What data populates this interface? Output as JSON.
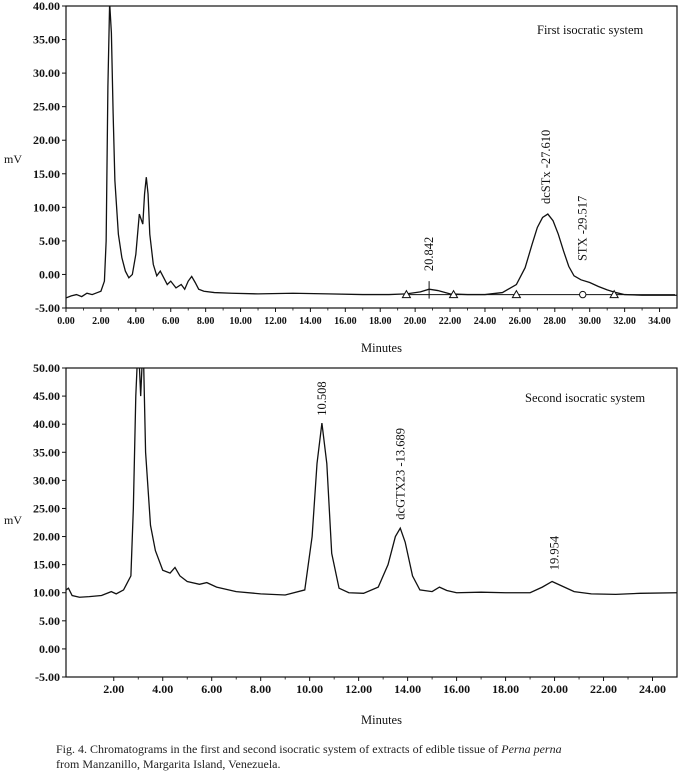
{
  "chart_data": [
    {
      "type": "line",
      "annotation_label": "First isocratic system",
      "ylabel": "mV",
      "xlabel": "Minutes",
      "xlim": [
        0,
        35
      ],
      "ylim": [
        -5,
        40
      ],
      "x_ticks": [
        "0.00",
        "2.00",
        "4.00",
        "6.00",
        "8.00",
        "10.00",
        "12.00",
        "14.00",
        "16.00",
        "18.00",
        "20.00",
        "22.00",
        "24.00",
        "26.00",
        "28.00",
        "30.00",
        "32.00",
        "34.00"
      ],
      "y_ticks": [
        "-5.00",
        "0.00",
        "5.00",
        "10.00",
        "15.00",
        "20.00",
        "25.00",
        "30.00",
        "35.00",
        "40.00"
      ],
      "series": [
        {
          "x": [
            0,
            0.3,
            0.6,
            0.9,
            1.2,
            1.5,
            1.8,
            2.0,
            2.2,
            2.3,
            2.4,
            2.5,
            2.6,
            2.7,
            2.8,
            3.0,
            3.2,
            3.4,
            3.6,
            3.8,
            4.0,
            4.2,
            4.4,
            4.5,
            4.6,
            4.7,
            4.8,
            5.0,
            5.2,
            5.4,
            5.6,
            5.8,
            6.0,
            6.3,
            6.6,
            6.8,
            7.0,
            7.2,
            7.4,
            7.6,
            7.9,
            8.5,
            9.5,
            11,
            13,
            15,
            17,
            18.5,
            19.5,
            20.3,
            20.8,
            21.3,
            22,
            23,
            24,
            25,
            25.8,
            26.3,
            26.7,
            27.0,
            27.3,
            27.6,
            27.9,
            28.2,
            28.5,
            28.8,
            29.1,
            29.5,
            30.0,
            30.5,
            31.0,
            31.5,
            32.0,
            33,
            35
          ],
          "y": [
            -3.5,
            -3.2,
            -3.0,
            -3.3,
            -2.8,
            -3.0,
            -2.7,
            -2.5,
            -1.0,
            5.0,
            28.0,
            40.5,
            36.0,
            24.0,
            14.0,
            6.0,
            2.5,
            0.5,
            -0.5,
            0.0,
            3.0,
            9.0,
            7.5,
            12.0,
            14.5,
            12.0,
            6.0,
            1.5,
            -0.2,
            0.5,
            -0.5,
            -1.5,
            -1.0,
            -2.0,
            -1.5,
            -2.2,
            -1.0,
            -0.3,
            -1.2,
            -2.2,
            -2.5,
            -2.7,
            -2.8,
            -2.9,
            -2.8,
            -2.9,
            -3.0,
            -3.0,
            -2.9,
            -2.6,
            -2.2,
            -2.4,
            -2.9,
            -3.0,
            -3.0,
            -2.7,
            -1.5,
            1.0,
            4.5,
            7.0,
            8.5,
            9.0,
            8.0,
            6.0,
            3.5,
            1.2,
            -0.2,
            -0.8,
            -1.2,
            -1.8,
            -2.3,
            -2.7,
            -3.0,
            -3.1,
            -3.1
          ]
        }
      ],
      "baseline_y": -3.0,
      "markers": [
        {
          "x": 19.5,
          "y": -3.0,
          "shape": "triangle"
        },
        {
          "x": 22.2,
          "y": -3.0,
          "shape": "triangle"
        },
        {
          "x": 25.8,
          "y": -3.0,
          "shape": "triangle"
        },
        {
          "x": 29.6,
          "y": -3.0,
          "shape": "circle"
        },
        {
          "x": 31.4,
          "y": -3.0,
          "shape": "triangle"
        }
      ],
      "peak_labels": [
        {
          "text": "20.842",
          "x": 20.8,
          "y": 0.5
        },
        {
          "text": "dcSTx -27.610",
          "x": 27.5,
          "y": 10.5
        },
        {
          "text": "STX -29.517",
          "x": 29.6,
          "y": 2.0
        }
      ]
    },
    {
      "type": "line",
      "annotation_label": "Second isocratic system",
      "ylabel": "mV",
      "xlabel": "Minutes",
      "xlim": [
        0.05,
        25
      ],
      "ylim": [
        -5,
        50
      ],
      "x_ticks": [
        "2.00",
        "4.00",
        "6.00",
        "8.00",
        "10.00",
        "12.00",
        "14.00",
        "16.00",
        "18.00",
        "20.00",
        "22.00",
        "24.00"
      ],
      "x_tick_values": [
        2,
        4,
        6,
        8,
        10,
        12,
        14,
        16,
        18,
        20,
        22,
        24
      ],
      "y_ticks": [
        "-5.00",
        "0.00",
        "5.00",
        "10.00",
        "15.00",
        "20.00",
        "25.00",
        "30.00",
        "35.00",
        "40.00",
        "45.00",
        "50.00"
      ],
      "series": [
        {
          "x": [
            0.05,
            0.15,
            0.3,
            0.6,
            1.0,
            1.5,
            1.9,
            2.1,
            2.4,
            2.7,
            2.8,
            2.9,
            3.0,
            3.1,
            3.2,
            3.3,
            3.5,
            3.7,
            4.0,
            4.3,
            4.5,
            4.7,
            5.0,
            5.5,
            5.8,
            6.2,
            7.0,
            8.0,
            9.0,
            9.8,
            10.1,
            10.3,
            10.5,
            10.7,
            10.9,
            11.2,
            11.6,
            12.2,
            12.8,
            13.2,
            13.5,
            13.7,
            13.9,
            14.2,
            14.5,
            15.0,
            15.3,
            15.6,
            16,
            17,
            18,
            19,
            19.5,
            19.9,
            20.3,
            20.8,
            21.5,
            22.5,
            23.5,
            25
          ],
          "y": [
            10.5,
            10.8,
            9.5,
            9.2,
            9.3,
            9.5,
            10.2,
            9.8,
            10.5,
            13.0,
            25.0,
            45.0,
            55.0,
            45.0,
            55.0,
            35.0,
            22.0,
            17.5,
            14.0,
            13.5,
            14.5,
            13.0,
            12.0,
            11.5,
            11.8,
            11.0,
            10.2,
            9.8,
            9.6,
            10.5,
            20.0,
            33.0,
            40.2,
            33.0,
            17.0,
            10.8,
            10.0,
            9.9,
            11.0,
            15.0,
            20.0,
            21.5,
            19.0,
            13.0,
            10.5,
            10.2,
            11.0,
            10.4,
            10.0,
            10.1,
            10.0,
            10.0,
            11.0,
            12.0,
            11.2,
            10.2,
            9.8,
            9.7,
            9.9,
            10.0
          ]
        }
      ],
      "peak_labels": [
        {
          "text": "10.508",
          "x": 10.5,
          "y": 41.5
        },
        {
          "text": "dcGTX23 -13.689",
          "x": 13.7,
          "y": 23.0
        },
        {
          "text": "19.954",
          "x": 20.0,
          "y": 14.0
        }
      ]
    }
  ],
  "caption": {
    "prefix": "Fig. 4. Chromatograms in the first and second isocratic system of extracts of edible tissue of ",
    "species": "Perna perna",
    "line2": "from Manzanillo, Margarita Island, Venezuela."
  }
}
